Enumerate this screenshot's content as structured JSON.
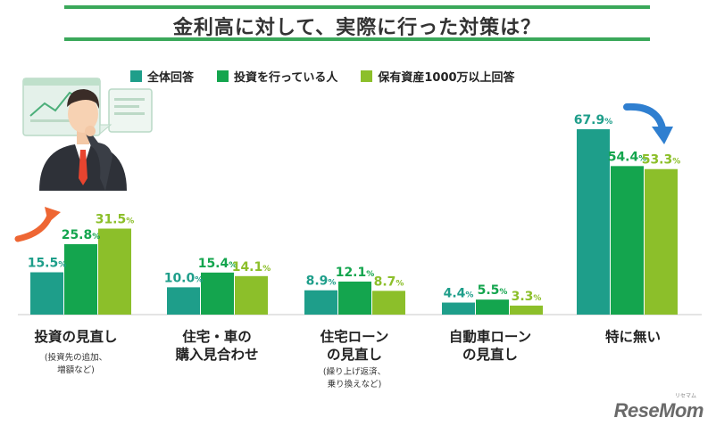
{
  "title": "金利高に対して、実際に行った対策は？",
  "colors": {
    "series_all": "#1e9e8a",
    "series_investors": "#14a54e",
    "series_assets": "#8cbf2a",
    "title_rule": "#3aa85a",
    "arrow_orange": "#ee6633",
    "arrow_blue": "#2f7fd0"
  },
  "chart_data": {
    "type": "bar",
    "categories": [
      "投資の見直し",
      "住宅・車の\n購入見合わせ",
      "住宅ローン\nの見直し",
      "自動車ローン\nの見直し",
      "特に無い"
    ],
    "category_notes": [
      "(投資先の追加、\n増額など)",
      "",
      "(繰り上げ返済、\n乗り換えなど)",
      "",
      ""
    ],
    "series": [
      {
        "name": "全体回答",
        "values": [
          15.5,
          10.0,
          8.9,
          4.4,
          67.9
        ]
      },
      {
        "name": "投資を行っている人",
        "values": [
          25.8,
          15.4,
          12.1,
          5.5,
          54.4
        ]
      },
      {
        "name": "保有資産1000万以上回答",
        "values": [
          31.5,
          14.1,
          8.7,
          3.3,
          53.3
        ]
      }
    ],
    "value_labels": [
      [
        "15.5",
        "10.0",
        "8.9",
        "4.4",
        "67.9"
      ],
      [
        "25.8",
        "15.4",
        "12.1",
        "5.5",
        "54.4"
      ],
      [
        "31.5",
        "14.1",
        "8.7",
        "3.3",
        "53.3"
      ]
    ],
    "unit": "%",
    "ylim": [
      0,
      70
    ],
    "legend_position": "top",
    "grid": false
  },
  "logo": {
    "text": "ReseMom",
    "ruby": "リセマム"
  },
  "icons": [
    "businessman-illustration-icon",
    "chart-bubble-icon",
    "orange-up-arrow-icon",
    "blue-down-arrow-icon"
  ]
}
